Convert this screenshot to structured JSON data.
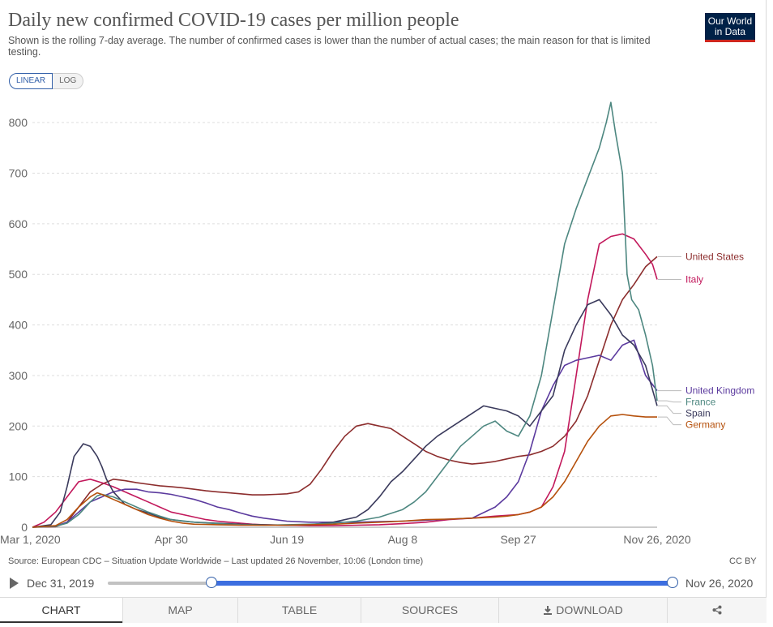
{
  "header": {
    "title": "Daily new confirmed COVID-19 cases per million people",
    "subtitle": "Shown is the rolling 7-day average. The number of confirmed cases is lower than the number of actual cases; the main reason for that is limited testing.",
    "logo_line1": "Our World",
    "logo_line2": "in Data"
  },
  "scale_toggle": {
    "linear": "LINEAR",
    "log": "LOG",
    "selected": "LINEAR"
  },
  "footer": {
    "source": "Source: European CDC – Situation Update Worldwide – Last updated 26 November, 10:06 (London time)",
    "license": "CC BY"
  },
  "timeline": {
    "start": "Dec 31, 2019",
    "end": "Nov 26, 2020"
  },
  "tabs": [
    {
      "label": "CHART",
      "icon": "",
      "active": true
    },
    {
      "label": "MAP",
      "icon": "",
      "active": false
    },
    {
      "label": "TABLE",
      "icon": "",
      "active": false
    },
    {
      "label": "SOURCES",
      "icon": "",
      "active": false
    },
    {
      "label": "DOWNLOAD",
      "icon": "download-icon",
      "active": false
    },
    {
      "label": "",
      "icon": "share-icon",
      "active": false
    }
  ],
  "chart_data": {
    "type": "line",
    "title": "Daily new confirmed COVID-19 cases per million people",
    "xlabel": "",
    "ylabel": "",
    "x_unit": "days since Mar 1, 2020",
    "xlim": [
      0,
      270
    ],
    "ylim": [
      0,
      850
    ],
    "y_ticks": [
      0,
      100,
      200,
      300,
      400,
      500,
      600,
      700,
      800
    ],
    "x_tick_labels": [
      {
        "day": 0,
        "label": "Mar 1, 2020"
      },
      {
        "day": 60,
        "label": "Apr 30"
      },
      {
        "day": 110,
        "label": "Jun 19"
      },
      {
        "day": 160,
        "label": "Aug 8"
      },
      {
        "day": 210,
        "label": "Sep 27"
      },
      {
        "day": 270,
        "label": "Nov 26, 2020"
      }
    ],
    "grid": true,
    "legend": "right",
    "series": [
      {
        "name": "United States",
        "color": "#8c2d2d",
        "x": [
          0,
          10,
          15,
          20,
          25,
          30,
          35,
          40,
          45,
          50,
          55,
          60,
          65,
          70,
          75,
          80,
          85,
          90,
          95,
          100,
          105,
          110,
          115,
          120,
          125,
          130,
          135,
          140,
          145,
          150,
          155,
          160,
          165,
          170,
          175,
          180,
          185,
          190,
          195,
          200,
          205,
          210,
          215,
          220,
          225,
          230,
          235,
          240,
          245,
          250,
          255,
          260,
          265,
          270
        ],
        "y": [
          0,
          1,
          10,
          40,
          70,
          85,
          95,
          92,
          88,
          85,
          82,
          80,
          78,
          75,
          72,
          70,
          68,
          66,
          64,
          64,
          65,
          66,
          70,
          85,
          115,
          150,
          180,
          200,
          205,
          200,
          195,
          180,
          165,
          150,
          140,
          133,
          128,
          125,
          127,
          130,
          135,
          140,
          143,
          150,
          160,
          180,
          210,
          260,
          330,
          400,
          450,
          480,
          515,
          535
        ]
      },
      {
        "name": "Italy",
        "color": "#c2185b",
        "x": [
          0,
          5,
          10,
          15,
          20,
          25,
          30,
          35,
          40,
          45,
          50,
          55,
          60,
          65,
          70,
          75,
          80,
          85,
          90,
          95,
          100,
          110,
          120,
          130,
          140,
          150,
          160,
          170,
          180,
          190,
          200,
          210,
          215,
          220,
          225,
          230,
          235,
          240,
          245,
          250,
          255,
          260,
          265,
          268,
          270
        ],
        "y": [
          0,
          10,
          30,
          60,
          90,
          95,
          88,
          80,
          70,
          60,
          50,
          40,
          30,
          25,
          20,
          15,
          12,
          10,
          8,
          6,
          5,
          4,
          3,
          3,
          4,
          5,
          7,
          10,
          15,
          18,
          22,
          25,
          30,
          40,
          80,
          150,
          300,
          450,
          560,
          575,
          580,
          570,
          540,
          520,
          490
        ]
      },
      {
        "name": "United Kingdom",
        "color": "#5b3a9e",
        "x": [
          0,
          10,
          15,
          20,
          25,
          30,
          35,
          40,
          45,
          50,
          55,
          60,
          65,
          70,
          75,
          80,
          85,
          90,
          95,
          100,
          110,
          120,
          130,
          140,
          150,
          160,
          170,
          180,
          190,
          200,
          205,
          210,
          215,
          220,
          225,
          230,
          235,
          240,
          245,
          250,
          255,
          260,
          265,
          270
        ],
        "y": [
          0,
          2,
          10,
          30,
          50,
          60,
          70,
          75,
          75,
          70,
          68,
          65,
          60,
          55,
          48,
          40,
          35,
          28,
          22,
          18,
          12,
          10,
          10,
          10,
          11,
          12,
          14,
          16,
          18,
          40,
          60,
          90,
          150,
          230,
          280,
          320,
          330,
          335,
          340,
          330,
          360,
          370,
          300,
          270
        ]
      },
      {
        "name": "Spain",
        "color": "#3a3a5c",
        "x": [
          0,
          8,
          12,
          15,
          18,
          22,
          25,
          28,
          30,
          32,
          35,
          38,
          40,
          45,
          50,
          55,
          60,
          65,
          70,
          80,
          90,
          100,
          110,
          120,
          130,
          140,
          145,
          150,
          155,
          160,
          165,
          170,
          175,
          180,
          185,
          190,
          195,
          200,
          205,
          210,
          215,
          220,
          225,
          230,
          235,
          240,
          245,
          250,
          255,
          260,
          265,
          270
        ],
        "y": [
          0,
          5,
          30,
          80,
          140,
          165,
          160,
          140,
          120,
          95,
          70,
          55,
          45,
          35,
          28,
          20,
          15,
          12,
          10,
          8,
          6,
          5,
          4,
          5,
          10,
          20,
          35,
          60,
          90,
          110,
          135,
          160,
          180,
          195,
          210,
          225,
          240,
          235,
          230,
          220,
          200,
          230,
          260,
          350,
          400,
          440,
          450,
          420,
          380,
          360,
          320,
          240
        ]
      },
      {
        "name": "France",
        "color": "#4d8780",
        "x": [
          0,
          10,
          15,
          20,
          25,
          28,
          30,
          35,
          40,
          45,
          50,
          55,
          60,
          70,
          80,
          90,
          100,
          110,
          120,
          130,
          140,
          150,
          160,
          165,
          170,
          175,
          180,
          185,
          190,
          195,
          200,
          205,
          210,
          215,
          220,
          225,
          230,
          235,
          240,
          245,
          248,
          250,
          252,
          255,
          257,
          259,
          262,
          265,
          268,
          270
        ],
        "y": [
          0,
          2,
          8,
          25,
          50,
          62,
          65,
          60,
          50,
          40,
          30,
          22,
          15,
          10,
          7,
          5,
          4,
          5,
          6,
          8,
          12,
          20,
          35,
          50,
          70,
          100,
          130,
          160,
          180,
          200,
          210,
          190,
          180,
          220,
          300,
          430,
          560,
          630,
          690,
          750,
          800,
          840,
          780,
          700,
          500,
          450,
          430,
          380,
          320,
          250
        ]
      },
      {
        "name": "Germany",
        "color": "#b5500b",
        "x": [
          0,
          10,
          15,
          20,
          25,
          28,
          30,
          35,
          40,
          45,
          50,
          55,
          60,
          65,
          70,
          80,
          90,
          100,
          110,
          120,
          130,
          140,
          150,
          160,
          170,
          180,
          190,
          200,
          205,
          210,
          215,
          220,
          225,
          230,
          235,
          240,
          245,
          250,
          255,
          260,
          265,
          270
        ],
        "y": [
          0,
          3,
          15,
          40,
          60,
          68,
          65,
          55,
          45,
          35,
          25,
          18,
          12,
          8,
          6,
          5,
          4,
          4,
          4,
          5,
          6,
          8,
          10,
          12,
          15,
          16,
          18,
          20,
          22,
          25,
          30,
          40,
          60,
          90,
          130,
          170,
          200,
          220,
          223,
          220,
          218,
          218
        ]
      }
    ]
  }
}
